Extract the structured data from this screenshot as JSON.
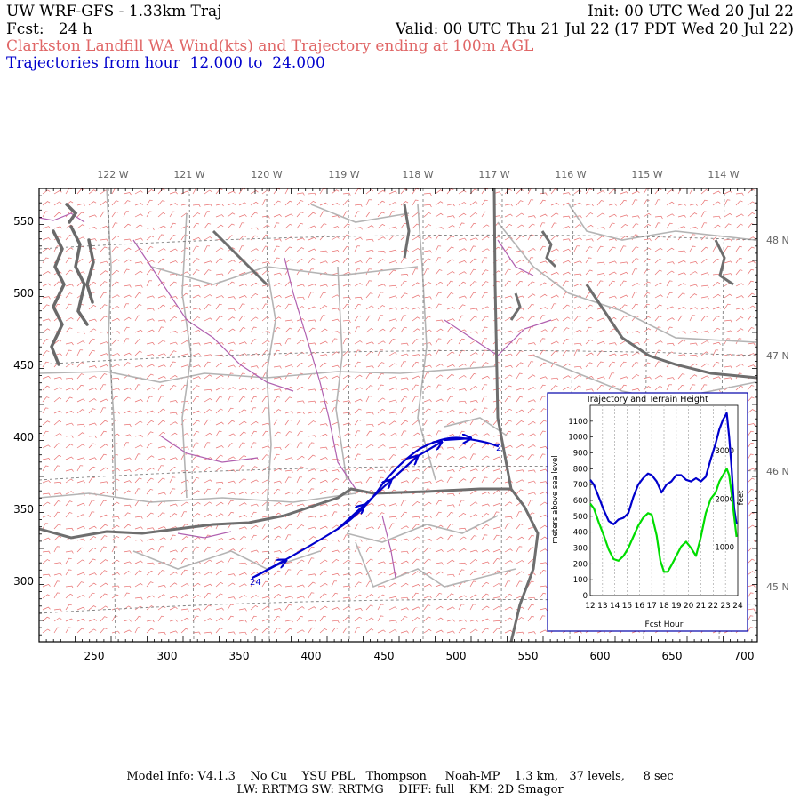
{
  "header": {
    "title": "UW WRF-GFS - 1.33km Traj",
    "init": "Init: 00 UTC Wed 20 Jul 22",
    "forecast": "Fcst:   24 h",
    "valid": "Valid: 00 UTC Thu 21 Jul 22 (17 PDT Wed 20 Jul 22)",
    "subtitle": "Clarkston Landfill WA Wind(kts) and Trajectory ending at 100m AGL",
    "trajectory_range": "Trajectories from hour  12.000 to  24.000"
  },
  "map": {
    "longitude_labels": [
      "122 W",
      "121 W",
      "120 W",
      "119 W",
      "118 W",
      "117 W",
      "116 W",
      "115 W",
      "114 W"
    ],
    "latitude_labels": [
      "48 N",
      "47 N",
      "46 N",
      "45 N"
    ],
    "x_ticks": [
      "250",
      "300",
      "350",
      "400",
      "450",
      "500",
      "550",
      "600",
      "650",
      "700"
    ],
    "y_ticks": [
      "550",
      "500",
      "450",
      "400",
      "350",
      "300"
    ],
    "colors": {
      "wind_barbs": "#e87070",
      "trajectory": "#0000cc",
      "state_border": "#707070",
      "county_border": "#b0b0b0",
      "river": "#b060b0",
      "frame": "#000000"
    },
    "trajectory_start_label": "24",
    "trajectory_end_label": "2",
    "wind_barbs": "wind-barb-field-icon"
  },
  "inset": {
    "title": "Trajectory and Terrain Height",
    "ylabel_left": "meters above sea level",
    "ylabel_right": "feet",
    "xlabel": "Fcst Hour",
    "y_ticks_m": [
      "0",
      "100",
      "200",
      "300",
      "400",
      "500",
      "600",
      "700",
      "800",
      "900",
      "1000",
      "1100"
    ],
    "y_ticks_ft": [
      "1000",
      "2000",
      "3000"
    ],
    "x_ticks": [
      "12",
      "13",
      "14",
      "15",
      "16",
      "17",
      "18",
      "19",
      "20",
      "21",
      "22",
      "23",
      "24"
    ],
    "colors": {
      "trajectory_height": "#0000cc",
      "terrain_height": "#00dd00"
    }
  },
  "chart_data": {
    "type": "line",
    "title": "Trajectory and Terrain Height",
    "xlabel": "Fcst Hour",
    "ylabel": "meters above sea level",
    "xlim": [
      12,
      24
    ],
    "ylim": [
      0,
      1200
    ],
    "grid": true,
    "series": [
      {
        "color": "#0000cc",
        "x": [
          12,
          12.3,
          12.7,
          13.1,
          13.5,
          13.9,
          14.3,
          14.7,
          15.1,
          15.5,
          15.9,
          16.3,
          16.7,
          17.0,
          17.4,
          17.8,
          18.2,
          18.6,
          19.0,
          19.4,
          19.8,
          20.2,
          20.6,
          21.0,
          21.4,
          21.8,
          22.2,
          22.5,
          22.8,
          23.1,
          23.3,
          23.5,
          23.7,
          23.9
        ],
        "y": [
          730,
          700,
          620,
          540,
          470,
          450,
          480,
          490,
          520,
          620,
          700,
          740,
          770,
          760,
          720,
          650,
          700,
          720,
          760,
          760,
          730,
          720,
          740,
          720,
          750,
          860,
          960,
          1050,
          1110,
          1150,
          1000,
          800,
          550,
          450
        ]
      },
      {
        "color": "#00dd00",
        "x": [
          12,
          12.3,
          12.7,
          13.1,
          13.5,
          13.9,
          14.3,
          14.7,
          15.1,
          15.5,
          15.9,
          16.3,
          16.7,
          17.0,
          17.4,
          17.7,
          18.0,
          18.3,
          18.6,
          19.0,
          19.4,
          19.8,
          20.2,
          20.6,
          21.0,
          21.4,
          21.8,
          22.2,
          22.5,
          22.8,
          23.1,
          23.3,
          23.5,
          23.7,
          23.9
        ],
        "y": [
          580,
          550,
          460,
          380,
          290,
          230,
          220,
          250,
          300,
          370,
          440,
          490,
          520,
          510,
          380,
          220,
          150,
          150,
          190,
          250,
          310,
          340,
          300,
          250,
          370,
          520,
          610,
          650,
          720,
          760,
          800,
          760,
          640,
          500,
          370
        ]
      }
    ]
  }
}
